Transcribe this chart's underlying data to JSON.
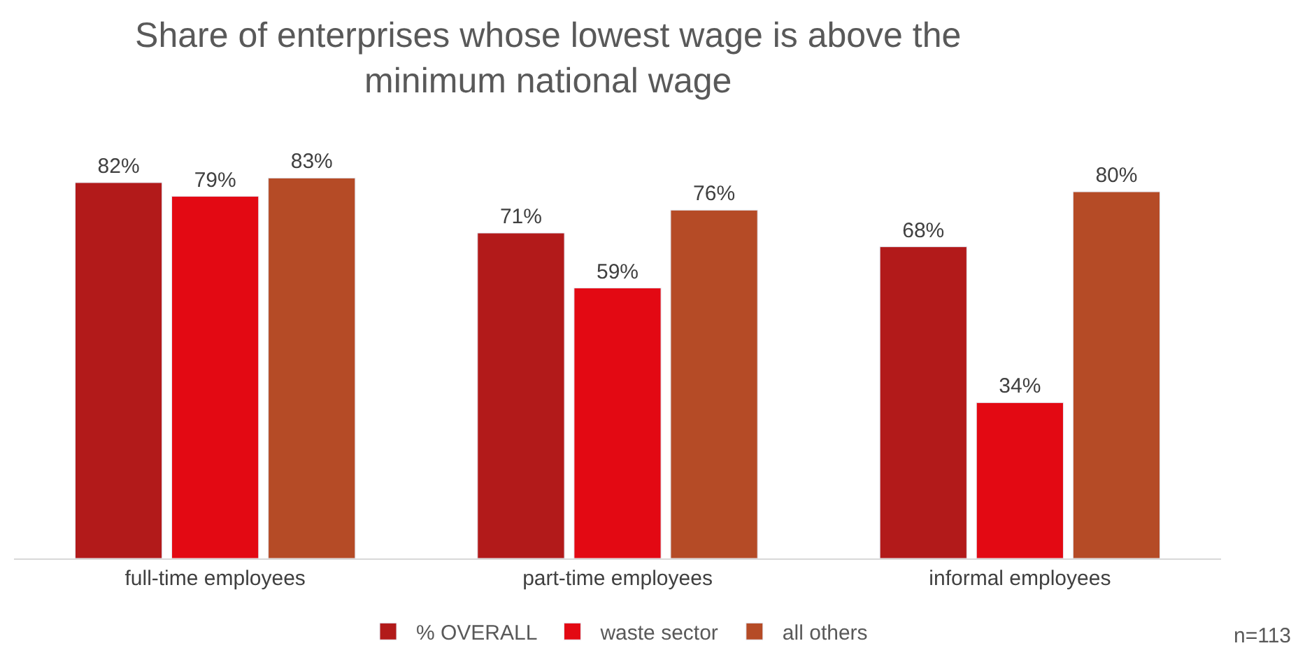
{
  "chart_data": {
    "type": "bar",
    "title": "Share of enterprises whose lowest wage is above the\nminimum national wage",
    "categories": [
      "full-time employees",
      "part-time employees",
      "informal employees"
    ],
    "series": [
      {
        "name": "% OVERALL",
        "color": "#b21a1a",
        "values": [
          82,
          71,
          68
        ],
        "value_labels": [
          "82%",
          "71%",
          "68%"
        ]
      },
      {
        "name": "waste sector",
        "color": "#e30913",
        "values": [
          79,
          59,
          34
        ],
        "value_labels": [
          "79%",
          "59%",
          "34%"
        ]
      },
      {
        "name": "all others",
        "color": "#b54b26",
        "values": [
          83,
          76,
          80
        ],
        "value_labels": [
          "83%",
          "76%",
          "80%"
        ]
      }
    ],
    "annotations": [
      "n=113"
    ],
    "legend": "bottom"
  }
}
